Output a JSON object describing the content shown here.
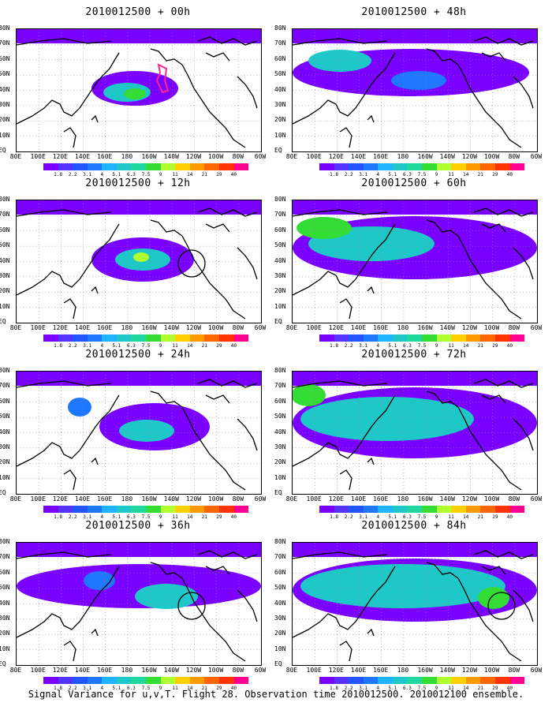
{
  "panels": [
    {
      "title": "2010012500 + 00h",
      "blobs": [
        [
          150,
          75,
          55,
          22,
          "#7a00ff"
        ],
        [
          140,
          80,
          30,
          12,
          "#1ec8c8"
        ],
        [
          150,
          82,
          14,
          7,
          "#33dd33"
        ]
      ],
      "circle": false,
      "pink_contour": true
    },
    {
      "title": "2010012500 + 48h",
      "blobs": [
        [
          150,
          55,
          150,
          30,
          "#7a00ff"
        ],
        [
          160,
          65,
          35,
          12,
          "#1e78ff"
        ],
        [
          60,
          40,
          40,
          14,
          "#1ec8c8"
        ]
      ],
      "circle": false,
      "pink_contour": false
    },
    {
      "title": "2010012500 + 12h",
      "blobs": [
        [
          160,
          75,
          65,
          28,
          "#7a00ff"
        ],
        [
          160,
          75,
          35,
          14,
          "#1ec8c8"
        ],
        [
          158,
          72,
          10,
          6,
          "#b0ff30"
        ]
      ],
      "circle": true,
      "pink_contour": false
    },
    {
      "title": "2010012500 + 60h",
      "blobs": [
        [
          155,
          60,
          155,
          40,
          "#7a00ff"
        ],
        [
          100,
          55,
          80,
          22,
          "#1ec8c8"
        ],
        [
          40,
          35,
          35,
          14,
          "#33dd33"
        ]
      ],
      "circle": false,
      "pink_contour": false
    },
    {
      "title": "2010012500 + 24h",
      "blobs": [
        [
          175,
          70,
          70,
          30,
          "#7a00ff"
        ],
        [
          165,
          75,
          35,
          14,
          "#1ec8c8"
        ],
        [
          80,
          45,
          15,
          12,
          "#1e78ff"
        ]
      ],
      "circle": false,
      "pink_contour": false
    },
    {
      "title": "2010012500 + 72h",
      "blobs": [
        [
          155,
          65,
          155,
          45,
          "#7a00ff"
        ],
        [
          120,
          60,
          110,
          28,
          "#1ec8c8"
        ],
        [
          20,
          30,
          22,
          14,
          "#33dd33"
        ]
      ],
      "circle": false,
      "pink_contour": false
    },
    {
      "title": "2010012500 + 36h",
      "blobs": [
        [
          155,
          55,
          155,
          28,
          "#7a00ff"
        ],
        [
          190,
          68,
          40,
          16,
          "#1ec8c8"
        ],
        [
          105,
          48,
          20,
          12,
          "#1e78ff"
        ]
      ],
      "circle": true,
      "pink_contour": false
    },
    {
      "title": "2010012500 + 84h",
      "blobs": [
        [
          155,
          60,
          155,
          40,
          "#7a00ff"
        ],
        [
          140,
          55,
          130,
          28,
          "#1ec8c8"
        ],
        [
          255,
          70,
          20,
          14,
          "#33dd33"
        ]
      ],
      "circle": true,
      "pink_contour": false
    }
  ],
  "lat_labels": [
    "80N",
    "70N",
    "60N",
    "50N",
    "40N",
    "30N",
    "20N",
    "10N",
    "EQ"
  ],
  "lon_labels": [
    "80E",
    "100E",
    "120E",
    "140E",
    "160E",
    "180",
    "160W",
    "140W",
    "120W",
    "100W",
    "80W",
    "60W"
  ],
  "colorbar": {
    "colors": [
      "#7a00ff",
      "#5533ff",
      "#2255ff",
      "#1e78ff",
      "#1eb4ff",
      "#1ec8c8",
      "#20d7a0",
      "#33dd33",
      "#b0ff30",
      "#ffd000",
      "#ff9900",
      "#ff6600",
      "#ff3300",
      "#ff0090"
    ],
    "ticks": [
      "1.8",
      "2.2",
      "3.1",
      "4",
      "5.1",
      "6.3",
      "7.5",
      "9",
      "11",
      "14",
      "21",
      "29",
      "40"
    ]
  },
  "caption": "Signal Variance for u,v,T. Flight 28. Observation time 2010012500. 2010012100 ensemble."
}
